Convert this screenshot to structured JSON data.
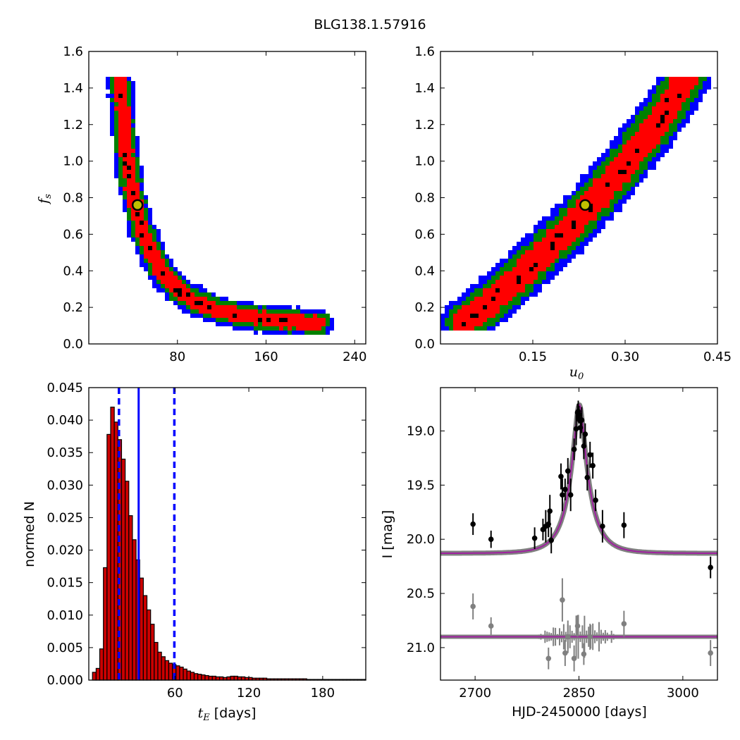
{
  "figure": {
    "title": "BLG138.1.57916"
  },
  "colors": {
    "blue": "#0000ff",
    "green": "#008000",
    "red": "#ff0000",
    "black": "#000000",
    "marker_fill": "#bfbf00",
    "model": "#a020a0",
    "band": "#808080",
    "resid": "#808080"
  },
  "chart_data": [
    {
      "type": "heatmap",
      "panel": "fs_vs_tE",
      "xlabel": "",
      "ylabel": "f_s",
      "xlim": [
        0,
        250
      ],
      "ylim": [
        0.0,
        1.6
      ],
      "xticks": [
        80,
        160,
        240
      ],
      "yticks": [
        0.0,
        0.2,
        0.4,
        0.6,
        0.8,
        1.0,
        1.2,
        1.4,
        1.6
      ],
      "xtick_labels": [
        "80",
        "160",
        "240"
      ],
      "ytick_labels": [
        "0.0",
        "0.2",
        "0.4",
        "0.6",
        "0.8",
        "1.0",
        "1.2",
        "1.4",
        "1.6"
      ],
      "ridge": [
        [
          28,
          1.45
        ],
        [
          30,
          1.3
        ],
        [
          32,
          1.15
        ],
        [
          35,
          1.0
        ],
        [
          39,
          0.85
        ],
        [
          44,
          0.72
        ],
        [
          50,
          0.6
        ],
        [
          58,
          0.48
        ],
        [
          68,
          0.38
        ],
        [
          82,
          0.29
        ],
        [
          100,
          0.22
        ],
        [
          125,
          0.17
        ],
        [
          155,
          0.14
        ],
        [
          185,
          0.12
        ],
        [
          208,
          0.11
        ]
      ],
      "best_fit": {
        "x": 44,
        "y": 0.76
      }
    },
    {
      "type": "heatmap",
      "panel": "fs_vs_u0",
      "xlabel": "u_0",
      "ylabel": "",
      "xlim": [
        0.0,
        0.45
      ],
      "ylim": [
        0.0,
        1.6
      ],
      "xticks": [
        0.15,
        0.3,
        0.45
      ],
      "yticks": [
        0.0,
        0.2,
        0.4,
        0.6,
        0.8,
        1.0,
        1.2,
        1.4,
        1.6
      ],
      "xtick_labels": [
        "0.15",
        "0.30",
        "0.45"
      ],
      "ytick_labels": [
        "0.0",
        "0.2",
        "0.4",
        "0.6",
        "0.8",
        "1.0",
        "1.2",
        "1.4",
        "1.6"
      ],
      "ridge": [
        [
          0.04,
          0.12
        ],
        [
          0.1,
          0.28
        ],
        [
          0.15,
          0.44
        ],
        [
          0.2,
          0.6
        ],
        [
          0.25,
          0.78
        ],
        [
          0.3,
          0.98
        ],
        [
          0.35,
          1.2
        ],
        [
          0.4,
          1.45
        ]
      ],
      "best_fit": {
        "x": 0.235,
        "y": 0.76
      }
    },
    {
      "type": "bar",
      "panel": "tE_histogram",
      "xlabel": "t_E  [days]",
      "ylabel": "normed N",
      "xlim": [
        -10,
        215
      ],
      "ylim": [
        0.0,
        0.045
      ],
      "xticks": [
        60,
        120,
        180
      ],
      "yticks": [
        0.0,
        0.005,
        0.01,
        0.015,
        0.02,
        0.025,
        0.03,
        0.035,
        0.04,
        0.045
      ],
      "xtick_labels": [
        "60",
        "120",
        "180"
      ],
      "ytick_labels": [
        "0.000",
        "0.005",
        "0.010",
        "0.015",
        "0.020",
        "0.025",
        "0.030",
        "0.035",
        "0.040",
        "0.045"
      ],
      "bin_start": -7,
      "bin_width": 2.95,
      "values": [
        0.0012,
        0.0018,
        0.0048,
        0.0173,
        0.0378,
        0.042,
        0.0397,
        0.037,
        0.034,
        0.0306,
        0.0253,
        0.0216,
        0.0185,
        0.0157,
        0.013,
        0.0108,
        0.0086,
        0.0058,
        0.0043,
        0.0036,
        0.003,
        0.0026,
        0.0024,
        0.0022,
        0.002,
        0.0017,
        0.0014,
        0.0012,
        0.001,
        0.0009,
        0.0008,
        0.0007,
        0.0006,
        0.0006,
        0.0005,
        0.0005,
        0.0004,
        0.0005,
        0.0006,
        0.0006,
        0.0005,
        0.0005,
        0.0004,
        0.0004,
        0.0003,
        0.0003,
        0.0003,
        0.0003,
        0.0002,
        0.0002,
        0.0002,
        0.0002,
        0.0002,
        0.0002,
        0.0002,
        0.0002,
        0.0002,
        0.0002,
        0.0002,
        0.0001,
        0.0001,
        0.0001,
        0.0001,
        0.0001,
        0.0001,
        0.0001,
        0.0001,
        0.0001,
        0.0001,
        0.0001,
        0.0001,
        0.0001,
        0.0001,
        0.0001,
        0.0001,
        0.0001
      ],
      "median": 30.5,
      "interval": [
        14.5,
        59.5
      ]
    },
    {
      "type": "scatter",
      "panel": "light_curve",
      "xlabel": "HJD-2450000 [days]",
      "ylabel": "I [mag]",
      "xlim": [
        2650,
        3050
      ],
      "ylim": [
        21.3,
        18.6
      ],
      "xticks": [
        2700,
        2850,
        3000
      ],
      "yticks": [
        19.0,
        19.5,
        20.0,
        20.5,
        21.0
      ],
      "xtick_labels": [
        "2700",
        "2850",
        "3000"
      ],
      "ytick_labels": [
        "19.0",
        "19.5",
        "20.0",
        "20.5",
        "21.0"
      ],
      "model": {
        "t0": 2850.5,
        "u0": 0.235,
        "tE": 30,
        "baseline": 20.13,
        "fs": 0.76
      },
      "resid_offset": 20.9,
      "points": [
        [
          2697,
          19.86,
          0.1
        ],
        [
          2723,
          20.0,
          0.08
        ],
        [
          2786,
          19.99,
          0.1
        ],
        [
          2798,
          19.91,
          0.1
        ],
        [
          2802,
          19.88,
          0.15
        ],
        [
          2806,
          19.86,
          0.12
        ],
        [
          2808,
          19.74,
          0.15
        ],
        [
          2810,
          20.01,
          0.12
        ],
        [
          2824,
          19.42,
          0.12
        ],
        [
          2826,
          19.59,
          0.15
        ],
        [
          2830,
          19.54,
          0.1
        ],
        [
          2834,
          19.37,
          0.12
        ],
        [
          2838,
          19.59,
          0.15
        ],
        [
          2843,
          19.17,
          0.1
        ],
        [
          2846,
          18.98,
          0.15
        ],
        [
          2848,
          18.83,
          0.08
        ],
        [
          2849,
          18.82,
          0.1
        ],
        [
          2850,
          18.85,
          0.08
        ],
        [
          2852,
          18.97,
          0.1
        ],
        [
          2854,
          18.9,
          0.12
        ],
        [
          2857,
          19.14,
          0.12
        ],
        [
          2859,
          19.03,
          0.1
        ],
        [
          2862,
          19.43,
          0.12
        ],
        [
          2866,
          19.22,
          0.12
        ],
        [
          2870,
          19.32,
          0.12
        ],
        [
          2874,
          19.64,
          0.1
        ],
        [
          2884,
          19.88,
          0.15
        ],
        [
          2915,
          19.87,
          0.12
        ],
        [
          3040,
          20.26,
          0.1
        ]
      ],
      "resid_points": [
        [
          2697,
          20.62,
          0.12
        ],
        [
          2723,
          20.8,
          0.08
        ],
        [
          2826,
          20.56,
          0.2
        ],
        [
          2830,
          21.05,
          0.12
        ],
        [
          2834,
          20.9,
          0.15
        ],
        [
          2843,
          21.1,
          0.12
        ],
        [
          2848,
          20.8,
          0.1
        ],
        [
          2857,
          21.06,
          0.1
        ],
        [
          2915,
          20.78,
          0.12
        ],
        [
          3040,
          21.05,
          0.12
        ],
        [
          2806,
          21.1,
          0.1
        ],
        [
          2866,
          20.9,
          0.12
        ]
      ]
    }
  ]
}
